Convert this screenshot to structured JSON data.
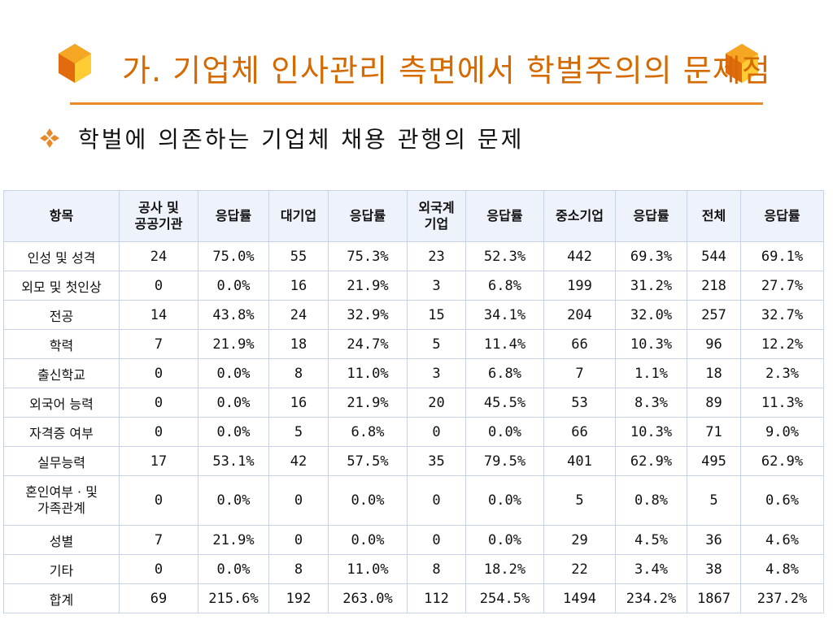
{
  "title": "가. 기업체 인사관리 측면에서 학벌주의의 문제점",
  "subtitle": "학벌에 의존하는 기업체 채용 관행의 문제",
  "colors": {
    "title": "#d46a00",
    "rule": "#e88a2a",
    "bullet": "#e88a2a",
    "header_bg": "#eef2fa",
    "grid": "#c9d3e6"
  },
  "icons": {
    "title_left": "hexagon-icon",
    "title_right": "hexagon-icon",
    "bullet": "four-diamond-bullet-icon"
  },
  "table": {
    "headers": [
      "항목",
      "공사 및\n공공기관",
      "응답률",
      "대기업",
      "응답률",
      "외국계\n기업",
      "응답률",
      "중소기업",
      "응답률",
      "전체",
      "응답률"
    ],
    "rows": [
      [
        "인성 및 성격",
        "24",
        "75.0%",
        "55",
        "75.3%",
        "23",
        "52.3%",
        "442",
        "69.3%",
        "544",
        "69.1%"
      ],
      [
        "외모 및 첫인상",
        "0",
        "0.0%",
        "16",
        "21.9%",
        "3",
        "6.8%",
        "199",
        "31.2%",
        "218",
        "27.7%"
      ],
      [
        "전공",
        "14",
        "43.8%",
        "24",
        "32.9%",
        "15",
        "34.1%",
        "204",
        "32.0%",
        "257",
        "32.7%"
      ],
      [
        "학력",
        "7",
        "21.9%",
        "18",
        "24.7%",
        "5",
        "11.4%",
        "66",
        "10.3%",
        "96",
        "12.2%"
      ],
      [
        "출신학교",
        "0",
        "0.0%",
        "8",
        "11.0%",
        "3",
        "6.8%",
        "7",
        "1.1%",
        "18",
        "2.3%"
      ],
      [
        "외국어 능력",
        "0",
        "0.0%",
        "16",
        "21.9%",
        "20",
        "45.5%",
        "53",
        "8.3%",
        "89",
        "11.3%"
      ],
      [
        "자격증 여부",
        "0",
        "0.0%",
        "5",
        "6.8%",
        "0",
        "0.0%",
        "66",
        "10.3%",
        "71",
        "9.0%"
      ],
      [
        "실무능력",
        "17",
        "53.1%",
        "42",
        "57.5%",
        "35",
        "79.5%",
        "401",
        "62.9%",
        "495",
        "62.9%"
      ],
      [
        "혼인여부 · 및\n가족관계",
        "0",
        "0.0%",
        "0",
        "0.0%",
        "0",
        "0.0%",
        "5",
        "0.8%",
        "5",
        "0.6%"
      ],
      [
        "성별",
        "7",
        "21.9%",
        "0",
        "0.0%",
        "0",
        "0.0%",
        "29",
        "4.5%",
        "36",
        "4.6%"
      ],
      [
        "기타",
        "0",
        "0.0%",
        "8",
        "11.0%",
        "8",
        "18.2%",
        "22",
        "3.4%",
        "38",
        "4.8%"
      ],
      [
        "합계",
        "69",
        "215.6%",
        "192",
        "263.0%",
        "112",
        "254.5%",
        "1494",
        "234.2%",
        "1867",
        "237.2%"
      ]
    ]
  }
}
